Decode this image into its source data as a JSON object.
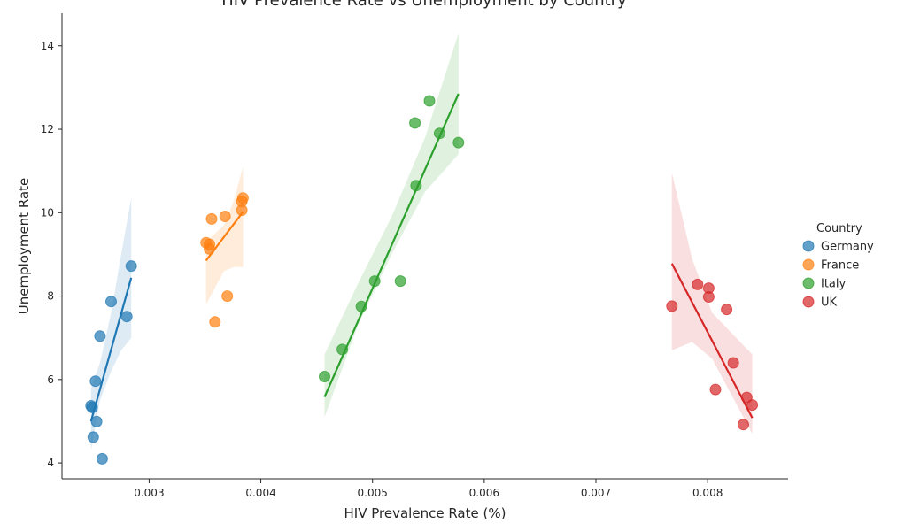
{
  "chart_data": {
    "type": "scatter",
    "title": "HIV Prevalence Rate vs Unemployment by Country",
    "xlabel": "HIV Prevalence Rate (%)",
    "ylabel": "Unemployment Rate",
    "xlim": [
      0.00222,
      0.00872
    ],
    "ylim": [
      3.62,
      14.78
    ],
    "xticks": [
      0.003,
      0.004,
      0.005,
      0.006,
      0.007,
      0.008
    ],
    "xtick_labels": [
      "0.003",
      "0.004",
      "0.005",
      "0.006",
      "0.007",
      "0.008"
    ],
    "yticks": [
      4,
      6,
      8,
      10,
      12,
      14
    ],
    "ytick_labels": [
      "4",
      "6",
      "8",
      "10",
      "12",
      "14"
    ],
    "grid": false,
    "legend_title": "Country",
    "legend_position": "right",
    "regression_lines": true,
    "confidence_bands": true,
    "series": [
      {
        "name": "Germany",
        "color": "#1f77b4",
        "points": [
          [
            0.00248,
            5.37
          ],
          [
            0.00249,
            5.33
          ],
          [
            0.0025,
            4.62
          ],
          [
            0.00252,
            5.96
          ],
          [
            0.00253,
            4.99
          ],
          [
            0.00256,
            7.04
          ],
          [
            0.00258,
            4.1
          ],
          [
            0.00266,
            7.87
          ],
          [
            0.0028,
            7.51
          ],
          [
            0.00284,
            8.72
          ]
        ],
        "fit": [
          [
            0.00248,
            5.0
          ],
          [
            0.00284,
            8.44
          ]
        ],
        "band": {
          "x": [
            0.00248,
            0.00256,
            0.00266,
            0.00275,
            0.00284
          ],
          "lower": [
            4.3,
            5.5,
            6.2,
            6.7,
            7.0
          ],
          "upper": [
            5.8,
            6.4,
            7.6,
            9.0,
            10.35
          ]
        }
      },
      {
        "name": "France",
        "color": "#ff7f0e",
        "points": [
          [
            0.00351,
            9.28
          ],
          [
            0.00354,
            9.24
          ],
          [
            0.00354,
            9.13
          ],
          [
            0.00356,
            9.85
          ],
          [
            0.00359,
            7.38
          ],
          [
            0.00368,
            9.91
          ],
          [
            0.0037,
            8.0
          ],
          [
            0.00383,
            10.27
          ],
          [
            0.00383,
            10.06
          ],
          [
            0.00384,
            10.35
          ]
        ],
        "fit": [
          [
            0.00351,
            8.85
          ],
          [
            0.00384,
            10.02
          ]
        ],
        "band": {
          "x": [
            0.00351,
            0.00359,
            0.00367,
            0.00376,
            0.00384
          ],
          "lower": [
            7.8,
            8.2,
            8.6,
            8.7,
            8.7
          ],
          "upper": [
            9.3,
            9.5,
            9.7,
            10.3,
            11.1
          ]
        }
      },
      {
        "name": "Italy",
        "color": "#2ca02c",
        "points": [
          [
            0.00457,
            6.07
          ],
          [
            0.00473,
            6.72
          ],
          [
            0.0049,
            7.75
          ],
          [
            0.00502,
            8.36
          ],
          [
            0.00525,
            8.36
          ],
          [
            0.00538,
            12.15
          ],
          [
            0.00539,
            10.65
          ],
          [
            0.00551,
            12.68
          ],
          [
            0.0056,
            11.9
          ],
          [
            0.00577,
            11.68
          ]
        ],
        "fit": [
          [
            0.00457,
            5.58
          ],
          [
            0.00577,
            12.85
          ]
        ],
        "band": {
          "x": [
            0.00457,
            0.00487,
            0.00517,
            0.00547,
            0.00577
          ],
          "lower": [
            5.1,
            7.3,
            9.0,
            10.5,
            11.4
          ],
          "upper": [
            6.6,
            8.3,
            9.9,
            11.8,
            14.3
          ]
        }
      },
      {
        "name": "UK",
        "color": "#d62728",
        "points": [
          [
            0.00768,
            7.76
          ],
          [
            0.00791,
            8.28
          ],
          [
            0.00801,
            8.19
          ],
          [
            0.00801,
            7.98
          ],
          [
            0.00807,
            5.76
          ],
          [
            0.00817,
            7.68
          ],
          [
            0.00823,
            6.4
          ],
          [
            0.00832,
            4.92
          ],
          [
            0.00835,
            5.57
          ],
          [
            0.0084,
            5.39
          ]
        ],
        "fit": [
          [
            0.00768,
            8.78
          ],
          [
            0.0084,
            5.08
          ]
        ],
        "band": {
          "x": [
            0.00768,
            0.00786,
            0.00804,
            0.00822,
            0.0084
          ],
          "lower": [
            6.7,
            6.9,
            6.5,
            5.6,
            4.7
          ],
          "upper": [
            10.95,
            8.9,
            7.6,
            7.1,
            6.6
          ]
        }
      }
    ]
  }
}
